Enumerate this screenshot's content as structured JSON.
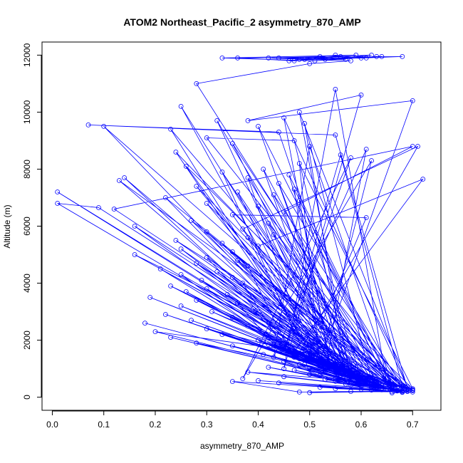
{
  "chart_data": {
    "type": "scatter",
    "title": "ATOM2 Northeast_Pacific_2 asymmetry_870_AMP",
    "xlabel": "asymmetry_870_AMP",
    "ylabel": "Altitude (m)",
    "xlim": [
      -0.02,
      0.755
    ],
    "ylim": [
      -460,
      12460
    ],
    "xticks": [
      0.0,
      0.1,
      0.2,
      0.3,
      0.4,
      0.5,
      0.6,
      0.7
    ],
    "xtick_labels": [
      "0.0",
      "0.1",
      "0.2",
      "0.3",
      "0.4",
      "0.5",
      "0.6",
      "0.7"
    ],
    "yticks": [
      0,
      2000,
      4000,
      6000,
      8000,
      10000,
      12000
    ],
    "ytick_labels": [
      "0",
      "2000",
      "4000",
      "6000",
      "8000",
      "10000",
      "12000"
    ],
    "grid": false,
    "legend": "none",
    "color": "#0000ff",
    "marker": "open-circle",
    "connected": true,
    "series": [
      {
        "x": [
          0.66,
          0.7,
          0.58,
          0.5,
          0.69,
          0.62,
          0.55,
          0.67,
          0.48,
          0.35,
          0.6,
          0.68,
          0.52,
          0.64,
          0.44,
          0.66,
          0.58,
          0.7,
          0.4,
          0.63,
          0.55,
          0.67,
          0.62,
          0.45,
          0.69,
          0.57,
          0.5,
          0.66,
          0.61,
          0.38,
          0.65,
          0.53,
          0.68,
          0.47,
          0.6,
          0.64,
          0.42,
          0.58,
          0.56,
          0.62,
          0.68,
          0.48,
          0.55,
          0.66,
          0.63,
          0.52,
          0.45,
          0.6,
          0.67,
          0.57,
          0.49,
          0.63,
          0.58,
          0.53,
          0.65,
          0.41,
          0.6,
          0.56,
          0.5,
          0.62,
          0.44,
          0.66,
          0.58,
          0.49,
          0.35,
          0.61,
          0.56,
          0.28,
          0.63,
          0.52,
          0.4,
          0.57,
          0.23,
          0.62,
          0.47,
          0.33,
          0.58,
          0.5,
          0.2,
          0.6,
          0.55,
          0.45,
          0.3,
          0.63,
          0.52,
          0.38,
          0.56,
          0.18,
          0.62,
          0.5,
          0.42,
          0.6,
          0.27,
          0.53,
          0.64,
          0.35,
          0.48,
          0.22,
          0.58,
          0.55,
          0.31,
          0.61,
          0.47,
          0.39,
          0.66,
          0.52,
          0.25,
          0.59,
          0.44,
          0.36,
          0.62,
          0.5,
          0.28,
          0.57,
          0.43,
          0.19,
          0.6,
          0.53,
          0.34,
          0.64,
          0.47,
          0.26,
          0.56,
          0.41,
          0.69,
          0.49,
          0.3,
          0.6,
          0.54,
          0.23,
          0.63,
          0.45,
          0.37,
          0.58,
          0.51,
          0.29,
          0.62,
          0.43,
          0.66,
          0.35,
          0.55,
          0.47,
          0.25,
          0.61,
          0.4,
          0.57,
          0.32,
          0.64,
          0.5,
          0.21,
          0.59,
          0.46,
          0.38,
          0.66,
          0.53,
          0.28,
          0.61,
          0.44,
          0.7,
          0.36,
          0.56,
          0.01,
          0.09,
          0.62,
          0.48,
          0.3,
          0.66,
          0.52,
          0.42,
          0.69,
          0.16,
          0.58,
          0.35,
          0.63,
          0.25,
          0.55,
          0.47,
          0.72,
          0.4,
          0.6,
          0.14,
          0.52,
          0.67,
          0.33,
          0.57,
          0.45,
          0.7,
          0.24,
          0.63,
          0.5,
          0.38,
          0.69,
          0.13,
          0.55,
          0.43,
          0.66,
          0.3,
          0.59,
          0.48,
          0.71,
          0.37,
          0.62,
          0.16,
          0.53,
          0.67,
          0.42,
          0.58,
          0.27,
          0.69,
          0.5,
          0.61,
          0.35,
          0.56,
          0.45,
          0.7,
          0.12,
          0.63,
          0.4,
          0.57,
          0.3,
          0.66,
          0.48,
          0.54,
          0.22,
          0.68,
          0.43,
          0.6,
          0.36,
          0.52,
          0.47,
          0.65,
          0.28,
          0.58,
          0.44,
          0.68,
          0.1,
          0.55,
          0.62,
          0.38,
          0.5,
          0.66,
          0.46,
          0.57,
          0.01,
          0.6,
          0.33,
          0.49,
          0.63,
          0.41,
          0.55,
          0.26,
          0.7,
          0.48,
          0.52,
          0.62,
          0.37,
          0.58,
          0.45,
          0.56,
          0.68,
          0.24,
          0.53,
          0.61,
          0.43,
          0.5,
          0.66,
          0.35,
          0.58,
          0.47,
          0.3,
          0.69,
          0.55,
          0.07,
          0.44,
          0.6,
          0.51,
          0.23,
          0.65,
          0.4,
          0.57,
          0.49,
          0.62,
          0.32,
          0.54,
          0.45,
          0.69,
          0.48,
          0.58,
          0.25,
          0.52,
          0.7,
          0.38,
          0.6,
          0.45,
          0.55,
          0.65,
          0.28,
          0.5,
          0.58,
          0.42,
          0.62,
          0.53,
          0.68,
          0.36,
          0.47,
          0.56,
          0.61,
          0.48,
          0.59,
          0.33,
          0.51,
          0.64,
          0.44,
          0.57,
          0.52,
          0.46,
          0.6,
          0.55,
          0.49,
          0.63
        ],
        "y": [
          150,
          180,
          200,
          160,
          210,
          250,
          300,
          220,
          180,
          550,
          280,
          170,
          350,
          260,
          500,
          190,
          420,
          230,
          580,
          310,
          650,
          240,
          380,
          720,
          200,
          460,
          800,
          260,
          540,
          880,
          300,
          620,
          190,
          950,
          400,
          330,
          1050,
          480,
          700,
          350,
          220,
          1150,
          560,
          270,
          420,
          760,
          1250,
          500,
          230,
          830,
          1380,
          450,
          650,
          900,
          300,
          1500,
          600,
          780,
          1020,
          380,
          1650,
          260,
          720,
          1150,
          1800,
          500,
          870,
          1900,
          340,
          1280,
          2000,
          620,
          2100,
          420,
          1400,
          2200,
          700,
          1550,
          2300,
          520,
          950,
          1700,
          2400,
          360,
          1100,
          2500,
          780,
          2600,
          480,
          1250,
          1850,
          580,
          2700,
          1000,
          320,
          2800,
          1350,
          2900,
          700,
          1150,
          3000,
          520,
          1500,
          3100,
          300,
          1200,
          3200,
          800,
          1650,
          3300,
          480,
          1380,
          3400,
          950,
          1800,
          3500,
          620,
          1100,
          3600,
          400,
          1550,
          3700,
          850,
          1950,
          280,
          1300,
          3800,
          700,
          1020,
          3900,
          450,
          1700,
          4000,
          880,
          1200,
          4100,
          550,
          1850,
          350,
          4200,
          1000,
          1450,
          4300,
          600,
          2000,
          900,
          4400,
          420,
          1300,
          4500,
          760,
          1650,
          4600,
          310,
          1100,
          4700,
          580,
          1800,
          250,
          4800,
          950,
          6800,
          6650,
          520,
          1500,
          4900,
          380,
          1250,
          2100,
          270,
          5000,
          800,
          5100,
          470,
          5200,
          1050,
          1600,
          7650,
          5300,
          650,
          7700,
          1350,
          330,
          5400,
          900,
          1800,
          260,
          5500,
          560,
          1450,
          5600,
          290,
          7600,
          1100,
          5700,
          400,
          5800,
          750,
          1550,
          8800,
          5900,
          600,
          6000,
          1200,
          360,
          6100,
          850,
          6200,
          280,
          1600,
          6300,
          6400,
          1000,
          6500,
          8800,
          6600,
          560,
          6700,
          900,
          6800,
          400,
          6900,
          1100,
          7000,
          300,
          7100,
          700,
          7200,
          1300,
          7300,
          500,
          7400,
          800,
          7500,
          350,
          9500,
          1050,
          600,
          7700,
          1400,
          450,
          7800,
          900,
          7200,
          650,
          7900,
          1500,
          550,
          8000,
          1000,
          8100,
          300,
          8200,
          1200,
          8300,
          650,
          8400,
          1600,
          8500,
          380,
          8600,
          950,
          8700,
          1400,
          8800,
          450,
          8900,
          750,
          9000,
          9100,
          300,
          9200,
          9550,
          9300,
          700,
          1350,
          9400,
          550,
          9500,
          900,
          9600,
          600,
          9700,
          1150,
          9800,
          360,
          10000,
          700,
          10200,
          1300,
          10400,
          9700,
          10600,
          1000,
          10800,
          500,
          11000,
          11700,
          11800,
          11900,
          12000,
          11850,
          11950,
          11900,
          11800,
          11950,
          11900,
          11850,
          12000,
          11900,
          11800,
          11950,
          11900,
          11850,
          11950,
          11800,
          11900,
          12000,
          11850,
          11950
        ]
      }
    ]
  }
}
